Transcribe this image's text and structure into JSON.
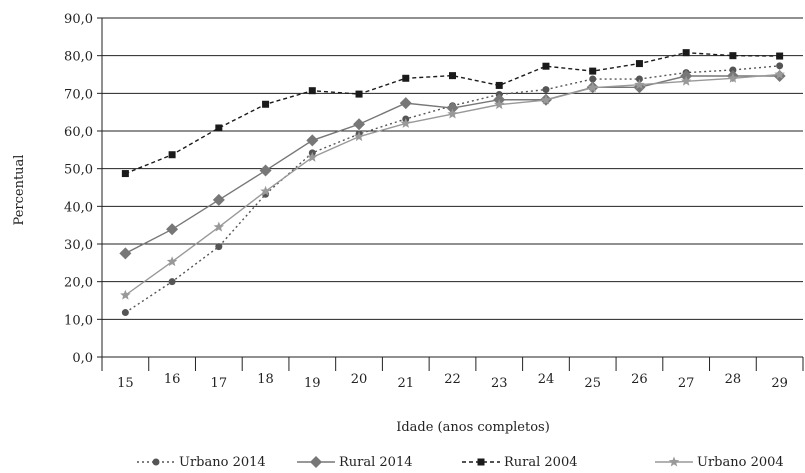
{
  "chart_data": {
    "type": "line",
    "ylabel": "Percentual",
    "xlabel": "Idade (anos completos)",
    "ylim": [
      0,
      90
    ],
    "y_ticks": [
      "0,0",
      "10,0",
      "20,0",
      "30,0",
      "40,0",
      "50,0",
      "60,0",
      "70,0",
      "80,0",
      "90,0"
    ],
    "x": [
      "15",
      "16",
      "17",
      "18",
      "19",
      "20",
      "21",
      "22",
      "23",
      "24",
      "25",
      "26",
      "27",
      "28",
      "29"
    ],
    "grid": "horizontal",
    "legend_position": "bottom",
    "series": [
      {
        "name": "Urbano 2014",
        "color": "#555555",
        "line": "dotted",
        "marker": "circle",
        "values": [
          11.8,
          20.0,
          29.3,
          43.2,
          54.2,
          59.2,
          63.2,
          66.7,
          69.7,
          71.0,
          73.8,
          73.8,
          75.5,
          76.2,
          77.3
        ]
      },
      {
        "name": "Rural 2014",
        "color": "#777777",
        "line": "solid",
        "marker": "diamond",
        "values": [
          27.5,
          33.9,
          41.7,
          49.5,
          57.5,
          61.8,
          67.4,
          66.1,
          68.3,
          68.3,
          71.6,
          71.6,
          74.6,
          74.6,
          74.6
        ]
      },
      {
        "name": "Rural 2004",
        "color": "#1a1a1a",
        "line": "dashed",
        "marker": "square",
        "values": [
          48.7,
          53.7,
          60.8,
          67.1,
          70.7,
          69.8,
          74.0,
          74.7,
          72.1,
          77.2,
          75.9,
          77.9,
          80.8,
          80.0,
          79.9
        ]
      },
      {
        "name": "Urbano 2004",
        "color": "#999999",
        "line": "solid",
        "marker": "star",
        "values": [
          16.4,
          25.3,
          34.5,
          44.0,
          53.0,
          58.5,
          62.0,
          64.5,
          67.0,
          68.2,
          71.5,
          72.3,
          73.2,
          74.0,
          75.0
        ]
      }
    ]
  }
}
